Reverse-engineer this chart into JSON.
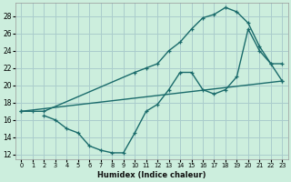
{
  "xlabel": "Humidex (Indice chaleur)",
  "bg_color": "#cceedd",
  "grid_color": "#aacccc",
  "line_color": "#1a6b6b",
  "xlim": [
    -0.5,
    23.5
  ],
  "ylim": [
    11.5,
    29.5
  ],
  "xticks": [
    0,
    1,
    2,
    3,
    4,
    5,
    6,
    7,
    8,
    9,
    10,
    11,
    12,
    13,
    14,
    15,
    16,
    17,
    18,
    19,
    20,
    21,
    22,
    23
  ],
  "yticks": [
    12,
    14,
    16,
    18,
    20,
    22,
    24,
    26,
    28
  ],
  "line1_x": [
    0,
    1,
    2,
    10,
    11,
    12,
    13,
    14,
    15,
    16,
    17,
    18,
    19,
    20,
    21,
    22,
    23
  ],
  "line1_y": [
    17,
    17,
    17,
    21.5,
    22,
    22.5,
    24,
    25,
    26.5,
    27.8,
    28.2,
    29,
    28.5,
    27.2,
    24.5,
    22.5,
    20.5
  ],
  "line2_x": [
    0,
    23
  ],
  "line2_y": [
    17,
    20.5
  ],
  "line3_x": [
    2,
    3,
    4,
    5,
    6,
    7,
    8,
    9,
    10,
    11,
    12,
    13,
    14,
    15,
    16,
    17,
    18,
    19,
    20,
    21,
    22,
    23
  ],
  "line3_y": [
    16.5,
    16,
    15,
    14.5,
    13,
    12.5,
    12.2,
    12.2,
    14.5,
    17,
    17.8,
    19.5,
    21.5,
    21.5,
    19.5,
    19,
    19.5,
    21,
    26.5,
    24,
    22.5,
    22.5
  ]
}
